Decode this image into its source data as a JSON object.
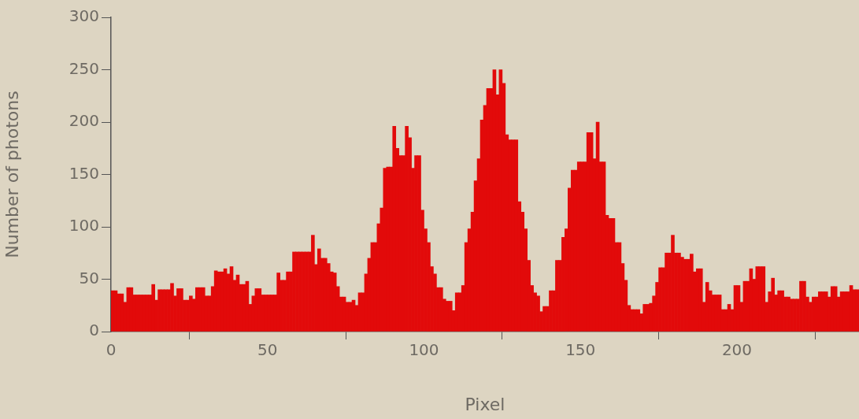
{
  "chart_data": {
    "type": "histogram",
    "xlabel": "Pixel",
    "ylabel": "Number of photons",
    "color": "#e20a0a",
    "bins": [
      0,
      1,
      2,
      3,
      4,
      5,
      6,
      7,
      8,
      9,
      10,
      11,
      12,
      13,
      14,
      15,
      16,
      17,
      18,
      19,
      20,
      21,
      22,
      23,
      24,
      25,
      26,
      27,
      28,
      29,
      30,
      31,
      32,
      33,
      34,
      35,
      36,
      37,
      38,
      39,
      40,
      41,
      42,
      43,
      44,
      45,
      46,
      47,
      48,
      49,
      50,
      51,
      52,
      53,
      54,
      55,
      56,
      57,
      58,
      59,
      60,
      61,
      62,
      63,
      64,
      65,
      66,
      67,
      68,
      69,
      70,
      71,
      72,
      73,
      74,
      75,
      76,
      77,
      78,
      79,
      80,
      81,
      82,
      83,
      84,
      85,
      86,
      87,
      88,
      89,
      90,
      91,
      92,
      93,
      94,
      95,
      96,
      97,
      98,
      99,
      100,
      101,
      102,
      103,
      104,
      105,
      106,
      107,
      108,
      109,
      110,
      111,
      112,
      113,
      114,
      115,
      116,
      117,
      118,
      119,
      120,
      121,
      122,
      123,
      124,
      125,
      126,
      127,
      128,
      129,
      130,
      131,
      132,
      133,
      134,
      135,
      136,
      137,
      138,
      139,
      140,
      141,
      142,
      143,
      144,
      145,
      146,
      147,
      148,
      149,
      150,
      151,
      152,
      153,
      154,
      155,
      156,
      157,
      158,
      159,
      160,
      161,
      162,
      163,
      164,
      165,
      166,
      167,
      168,
      169,
      170,
      171,
      172,
      173,
      174,
      175,
      176,
      177,
      178,
      179,
      180,
      181,
      182,
      183,
      184,
      185,
      186,
      187,
      188,
      189,
      190,
      191,
      192,
      193,
      194,
      195,
      196,
      197,
      198,
      199,
      200,
      201,
      202,
      203,
      204,
      205,
      206,
      207,
      208,
      209,
      210,
      211,
      212,
      213,
      214,
      215,
      216,
      217,
      218,
      219,
      220,
      221,
      222,
      223,
      224,
      225,
      226,
      227,
      228,
      229,
      230,
      231,
      232,
      233,
      234,
      235,
      236,
      237,
      238,
      239
    ],
    "values": [
      39,
      39,
      36,
      36,
      28,
      42,
      42,
      35,
      35,
      35,
      35,
      35,
      35,
      45,
      30,
      40,
      40,
      40,
      40,
      46,
      34,
      41,
      41,
      30,
      30,
      34,
      31,
      42,
      42,
      42,
      34,
      34,
      43,
      58,
      57,
      57,
      60,
      55,
      62,
      49,
      54,
      45,
      45,
      48,
      26,
      34,
      41,
      41,
      35,
      35,
      35,
      35,
      35,
      56,
      49,
      49,
      57,
      57,
      76,
      76,
      76,
      76,
      76,
      76,
      92,
      64,
      79,
      70,
      70,
      65,
      57,
      56,
      43,
      33,
      33,
      28,
      28,
      30,
      25,
      37,
      37,
      55,
      70,
      85,
      85,
      103,
      118,
      156,
      157,
      157,
      196,
      175,
      168,
      168,
      196,
      185,
      156,
      168,
      168,
      116,
      98,
      85,
      62,
      55,
      42,
      42,
      31,
      29,
      29,
      20,
      37,
      37,
      44,
      85,
      98,
      114,
      144,
      165,
      202,
      216,
      232,
      232,
      250,
      226,
      250,
      237,
      188,
      183,
      183,
      183,
      124,
      114,
      98,
      68,
      44,
      37,
      34,
      19,
      24,
      24,
      39,
      39,
      68,
      68,
      90,
      98,
      137,
      154,
      154,
      162,
      162,
      162,
      190,
      190,
      165,
      200,
      162,
      162,
      111,
      108,
      108,
      85,
      85,
      65,
      49,
      25,
      21,
      21,
      21,
      17,
      26,
      26,
      27,
      34,
      47,
      61,
      61,
      75,
      75,
      92,
      75,
      75,
      71,
      69,
      69,
      74,
      57,
      60,
      60,
      28,
      47,
      39,
      35,
      35,
      35,
      21,
      21,
      26,
      21,
      44,
      44,
      28,
      48,
      48,
      60,
      50,
      62,
      62,
      62,
      28,
      38,
      51,
      35,
      39,
      39,
      33,
      33,
      31,
      31,
      31,
      48,
      48,
      33,
      28,
      33,
      33,
      38,
      38,
      38,
      33,
      43,
      43,
      33,
      38,
      38,
      38,
      44,
      40,
      40
    ],
    "xlim": [
      0,
      239
    ],
    "xticks": [
      0,
      50,
      100,
      150,
      200
    ],
    "ylim": [
      0,
      300
    ],
    "yticks": [
      0,
      50,
      100,
      150,
      200,
      250,
      300
    ],
    "grid": false,
    "legend": false
  }
}
